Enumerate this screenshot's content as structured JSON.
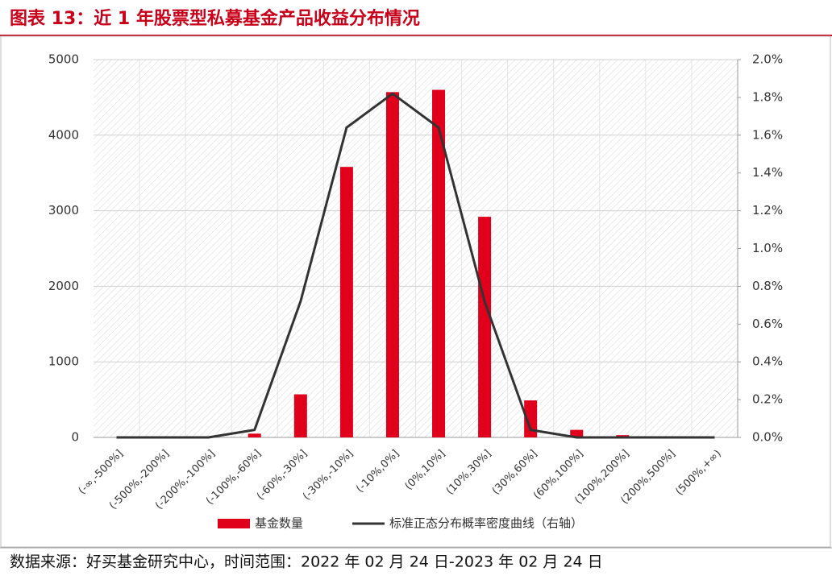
{
  "chart_data": {
    "type": "bar-line",
    "title": "图表 13：近 1 年股票型私募基金产品收益分布情况",
    "source": "数据来源：好买基金研究中心，时间范围：2022 年 02 月 24 日-2023 年 02 月 24 日",
    "categories": [
      "(-∞,-500%]",
      "(-500%,-200%]",
      "(-200%,-100%]",
      "(-100%,-60%]",
      "(-60%,-30%]",
      "(-30%,-10%]",
      "(-10%,0%]",
      "(0%,10%]",
      "(10%,30%]",
      "(30%,60%]",
      "(60%,100%]",
      "(100%,200%]",
      "(200%,500%]",
      "(500%,+∞)"
    ],
    "series": [
      {
        "name": "基金数量",
        "type": "bar",
        "color": "#e0001b",
        "values": [
          0,
          0,
          0,
          50,
          570,
          3580,
          4570,
          4600,
          2920,
          490,
          100,
          30,
          0,
          0
        ]
      },
      {
        "name": "标准正态分布概率密度曲线（右轴）",
        "type": "line",
        "axis": "y2",
        "color": "#333333",
        "values": [
          0,
          0,
          0,
          0.04,
          0.72,
          1.64,
          1.82,
          1.64,
          0.72,
          0.04,
          0,
          0,
          0,
          0
        ]
      }
    ],
    "ylim": [
      0,
      5000
    ],
    "yticks": [
      0,
      1000,
      2000,
      3000,
      4000,
      5000
    ],
    "y2lim": [
      0,
      2
    ],
    "y2ticks": [
      {
        "value": 0,
        "label": "0.0%"
      },
      {
        "value": 0.2,
        "label": "0.2%"
      },
      {
        "value": 0.4,
        "label": "0.4%"
      },
      {
        "value": 0.6,
        "label": "0.6%"
      },
      {
        "value": 0.8,
        "label": "0.8%"
      },
      {
        "value": 1,
        "label": "1.0%"
      },
      {
        "value": 1.2,
        "label": "1.2%"
      },
      {
        "value": 1.4,
        "label": "1.4%"
      },
      {
        "value": 1.6,
        "label": "1.6%"
      },
      {
        "value": 1.8,
        "label": "1.8%"
      },
      {
        "value": 2,
        "label": "2.0%"
      }
    ],
    "grid": true
  }
}
